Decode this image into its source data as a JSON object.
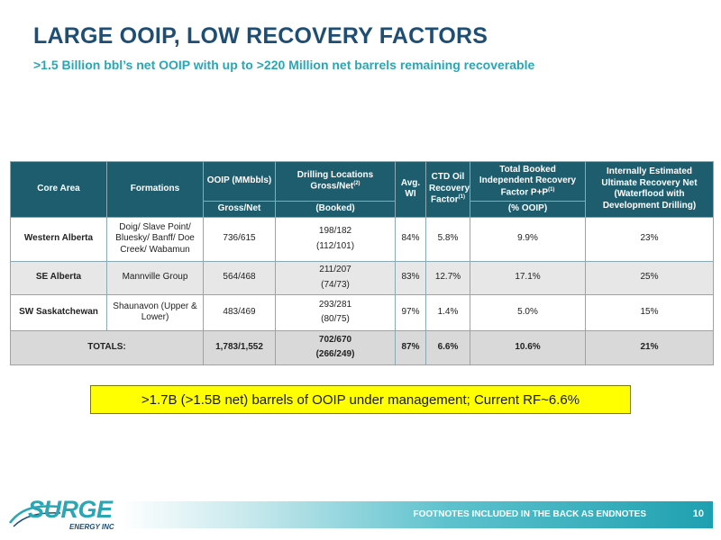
{
  "slide": {
    "title": "LARGE OOIP, LOW RECOVERY FACTORS",
    "subtitle": ">1.5 Billion bbl’s net OOIP with up to >220 Million net barrels remaining recoverable",
    "callout": ">1.7B (>1.5B net) barrels of OOIP under management; Current RF~6.6%",
    "footer_note": "FOOTNOTES INCLUDED IN THE BACK AS ENDNOTES",
    "page_number": "10"
  },
  "logo": {
    "word": "SURGE",
    "sub": "ENERGY INC",
    "colors": {
      "primary": "#2aa6b4",
      "secondary": "#1e4e73"
    }
  },
  "table": {
    "headers": {
      "core_area": "Core Area",
      "formations": "Formations",
      "ooip": "OOIP (MMbbls)",
      "ooip_sub": "Gross/Net",
      "drilling": "Drilling Locations Gross/Net",
      "drilling_sup": "(2)",
      "drilling_sub": "(Booked)",
      "avg_wi": "Avg. WI",
      "ctd": "CTD Oil Recovery Factor",
      "ctd_sup": "(1)",
      "booked_rf": "Total Booked Independent Recovery Factor P+P",
      "booked_rf_sup": "(1)",
      "booked_rf_sub": "(% OOIP)",
      "eur": "Internally Estimated Ultimate Recovery Net (Waterflood with Development Drilling)"
    },
    "rows": [
      {
        "area": "Western Alberta",
        "formations": "Doig/ Slave Point/ Bluesky/ Banff/ Doe Creek/ Wabamun",
        "ooip": "736/615",
        "drill_gross_net": "198/182",
        "drill_booked": "(112/101)",
        "wi": "84%",
        "ctd": "5.8%",
        "booked_rf": "9.9%",
        "eur": "23%"
      },
      {
        "area": "SE Alberta",
        "formations": "Mannville Group",
        "ooip": "564/468",
        "drill_gross_net": "211/207",
        "drill_booked": "(74/73)",
        "wi": "83%",
        "ctd": "12.7%",
        "booked_rf": "17.1%",
        "eur": "25%"
      },
      {
        "area": "SW Saskatchewan",
        "formations": "Shaunavon (Upper & Lower)",
        "ooip": "483/469",
        "drill_gross_net": "293/281",
        "drill_booked": "(80/75)",
        "wi": "97%",
        "ctd": "1.4%",
        "booked_rf": "5.0%",
        "eur": "15%"
      }
    ],
    "totals": {
      "label": "TOTALS:",
      "ooip": "1,783/1,552",
      "drill_gross_net": "702/670",
      "drill_booked": "(266/249)",
      "wi": "87%",
      "ctd": "6.6%",
      "booked_rf": "10.6%",
      "eur": "21%"
    }
  }
}
